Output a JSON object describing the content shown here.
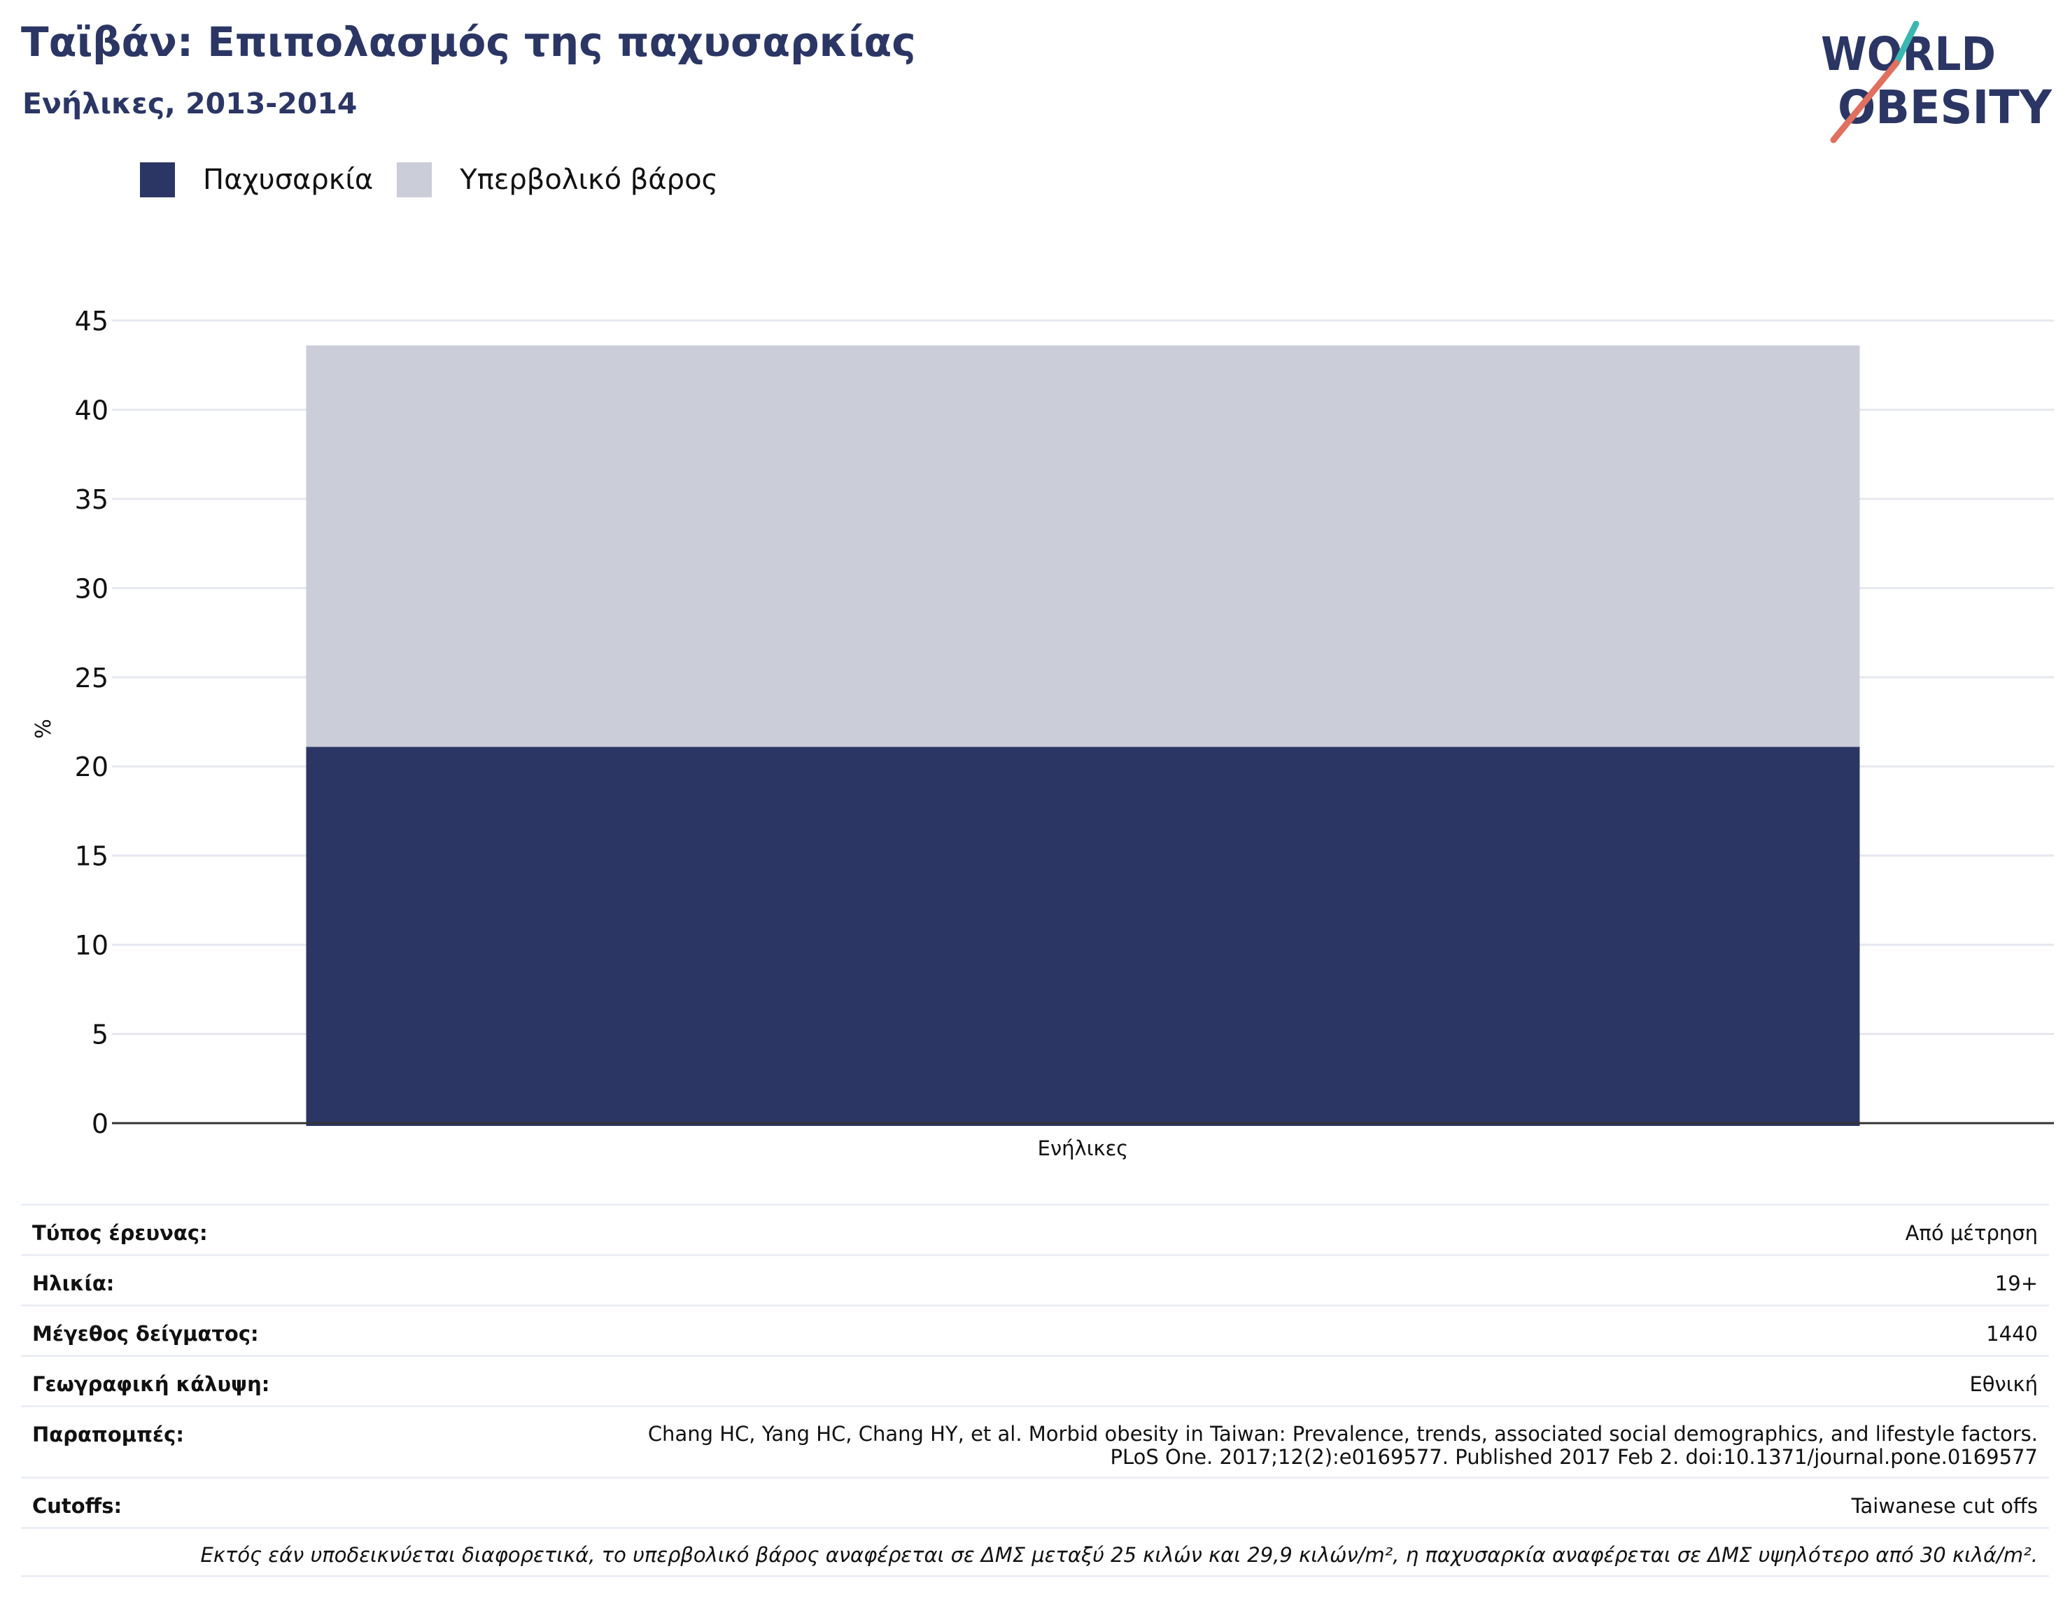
{
  "header": {
    "title": "Ταϊβάν: Επιπολασμός της παχυσαρκίας",
    "subtitle": "Ενήλικες, 2013-2014"
  },
  "logo": {
    "line1": "WORLD",
    "line2": "OBESITY",
    "text_color": "#2b3664",
    "slash_top_color": "#3ab7b0",
    "slash_bottom_color": "#e0705f"
  },
  "colors": {
    "obesity": "#2b3664",
    "overweight": "#cbcdd8",
    "grid": "#e6e8ef",
    "axis": "#333333"
  },
  "chart_data": {
    "type": "bar",
    "stacked": true,
    "categories": [
      "Ενήλικες"
    ],
    "series": [
      {
        "name": "Παχυσαρκία",
        "values": [
          21.1
        ]
      },
      {
        "name": "Υπερβολικό βάρος",
        "values": [
          22.5
        ]
      }
    ],
    "ylabel": "%",
    "xlabel": "",
    "ylim": [
      0,
      45
    ],
    "yticks": [
      0,
      5,
      10,
      15,
      20,
      25,
      30,
      35,
      40,
      45
    ],
    "grid": true,
    "legend_position": "top-left"
  },
  "meta": {
    "survey_type_label": "Τύπος έρευνας:",
    "survey_type_value": "Από μέτρηση",
    "age_label": "Ηλικία:",
    "age_value": "19+",
    "sample_label": "Μέγεθος δείγματος:",
    "sample_value": "1440",
    "coverage_label": "Γεωγραφική κάλυψη:",
    "coverage_value": "Εθνική",
    "refs_label": "Παραπομπές:",
    "refs_line1": "Chang HC, Yang HC, Chang HY, et al. Morbid obesity in Taiwan: Prevalence, trends, associated social demographics, and lifestyle factors.",
    "refs_line2": "PLoS One. 2017;12(2):e0169577. Published 2017 Feb 2. doi:10.1371/journal.pone.0169577",
    "cutoffs_label": "Cutoffs:",
    "cutoffs_value": "Taiwanese cut offs",
    "note": "Εκτός εάν υποδεικνύεται διαφορετικά, το υπερβολικό βάρος αναφέρεται σε ΔΜΣ μεταξύ 25 κιλών και 29,9 κιλών/m², η παχυσαρκία αναφέρεται σε ΔΜΣ υψηλότερο από 30 κιλά/m²."
  }
}
